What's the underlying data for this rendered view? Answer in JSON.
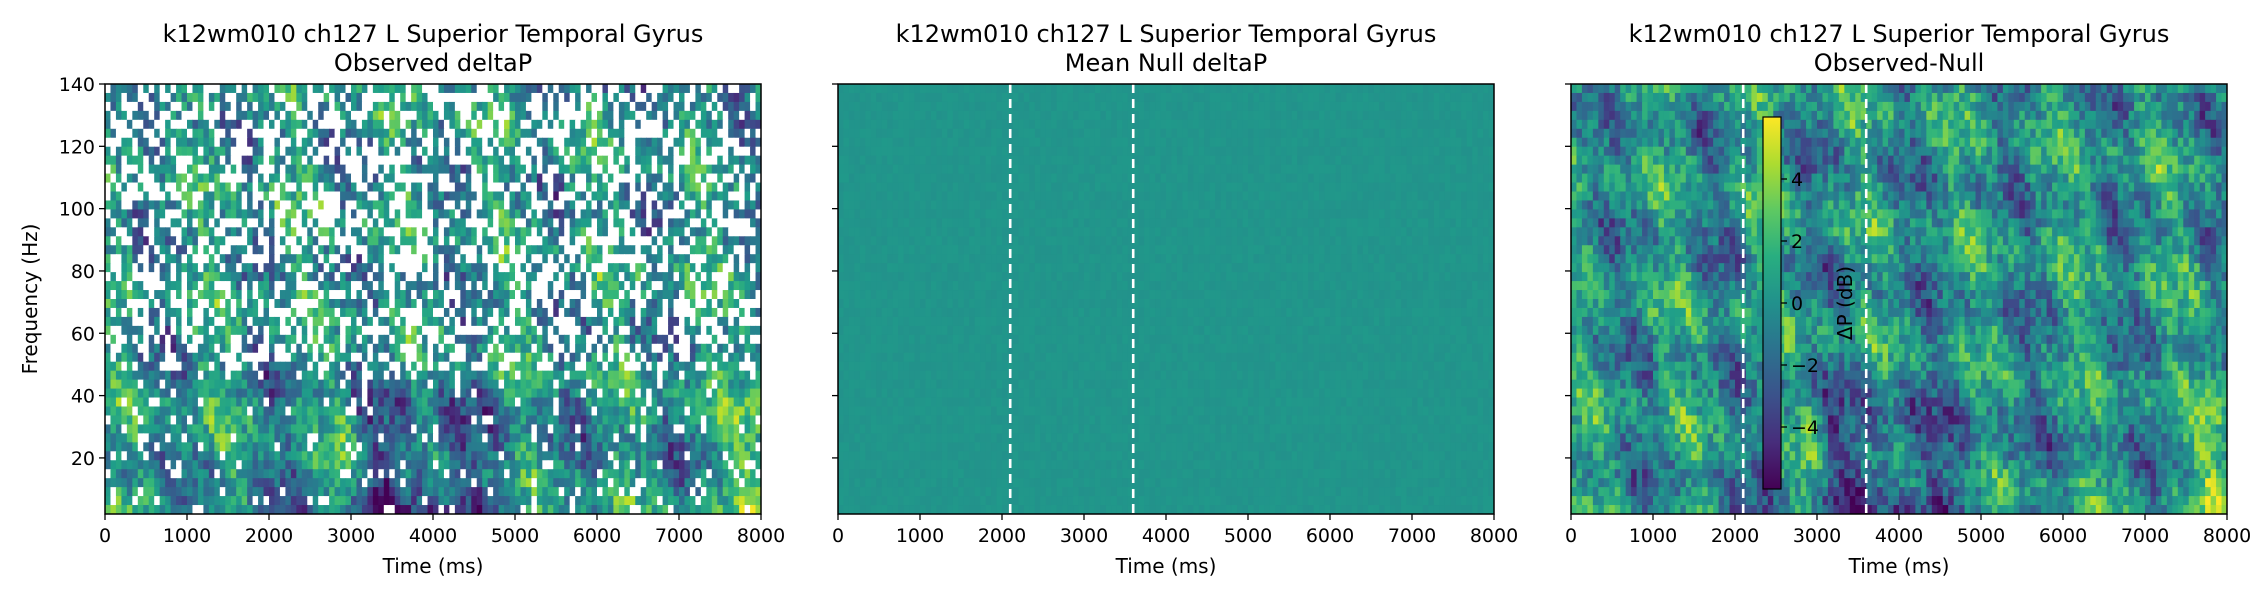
{
  "chart_data": [
    {
      "type": "heatmap",
      "title": "k12wm010 ch127 L Superior Temporal Gyrus",
      "subtitle": "Observed deltaP",
      "xlabel": "Time (ms)",
      "ylabel": "Frequency (Hz)",
      "xlim": [
        0,
        8000
      ],
      "ylim": [
        2,
        140
      ],
      "xticks": [
        "0",
        "1000",
        "2000",
        "3000",
        "4000",
        "5000",
        "6000",
        "7000",
        "8000"
      ],
      "yticks": [
        "20",
        "40",
        "60",
        "80",
        "100",
        "120",
        "140"
      ],
      "colormap": "viridis",
      "masked_cells": "white (non-significant)",
      "dashed_lines_x": []
    },
    {
      "type": "heatmap",
      "title": "k12wm010 ch127 L Superior Temporal Gyrus",
      "subtitle": "Mean Null deltaP",
      "xlabel": "Time (ms)",
      "ylabel": "",
      "xlim": [
        0,
        8000
      ],
      "ylim": [
        2,
        140
      ],
      "xticks": [
        "0",
        "1000",
        "2000",
        "3000",
        "4000",
        "5000",
        "6000",
        "7000",
        "8000"
      ],
      "yticks": [],
      "colormap": "viridis",
      "dashed_lines_x": [
        2100,
        3600
      ]
    },
    {
      "type": "heatmap",
      "title": "k12wm010 ch127 L Superior Temporal Gyrus",
      "subtitle": "Observed-Null",
      "xlabel": "Time (ms)",
      "ylabel": "",
      "xlim": [
        0,
        8000
      ],
      "ylim": [
        2,
        140
      ],
      "xticks": [
        "0",
        "1000",
        "2000",
        "3000",
        "4000",
        "5000",
        "6000",
        "7000",
        "8000"
      ],
      "yticks": [],
      "colormap": "viridis",
      "dashed_lines_x": [
        2100,
        3600
      ],
      "colorbar": {
        "label": "ΔP (dB)",
        "range": [
          -6,
          6
        ],
        "ticks": [
          "4",
          "2",
          "0",
          "−2",
          "−4"
        ],
        "tick_values": [
          4,
          2,
          0,
          -2,
          -4
        ]
      }
    }
  ]
}
